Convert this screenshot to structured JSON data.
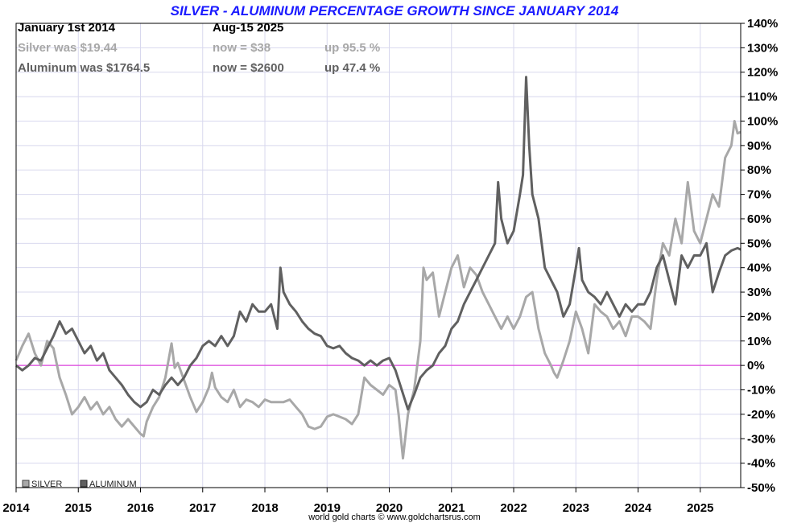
{
  "chart_data": {
    "type": "line",
    "title": "SILVER - ALUMINUM PERCENTAGE GROWTH SINCE JANUARY 2014",
    "info": {
      "start_label": "January 1st 2014",
      "end_label": "Aug-15  2025",
      "rows": [
        {
          "was": "Silver was $19.44",
          "now": "now = $38",
          "up": "up 95.5 %",
          "color": "#a8a8a8"
        },
        {
          "was": "Aluminum was $1764.5",
          "now": "now = $2600",
          "up": "up 47.4 %",
          "color": "#606060"
        }
      ],
      "start_color": "#000000"
    },
    "ylim": [
      -50,
      140
    ],
    "yticks": [
      "140%",
      "130%",
      "120%",
      "110%",
      "100%",
      "90%",
      "80%",
      "70%",
      "60%",
      "50%",
      "40%",
      "30%",
      "20%",
      "10%",
      "0%",
      "-10%",
      "-20%",
      "-30%",
      "-40%",
      "-50%"
    ],
    "xlim": [
      2014,
      2025.65
    ],
    "xticks": [
      "2014",
      "2015",
      "2016",
      "2017",
      "2018",
      "2019",
      "2020",
      "2021",
      "2022",
      "2023",
      "2024",
      "2025"
    ],
    "zero_line_color": "#dd44dd",
    "grid": true,
    "legend": {
      "position": "bottom-left",
      "items": [
        {
          "name": "SILVER",
          "color": "#a8a8a8"
        },
        {
          "name": "ALUMINUM",
          "color": "#606060"
        }
      ]
    },
    "credit": "world gold charts © www.goldchartsrus.com",
    "series": [
      {
        "name": "SILVER",
        "color": "#a8a8a8",
        "points": [
          [
            2014.0,
            2
          ],
          [
            2014.1,
            8
          ],
          [
            2014.2,
            13
          ],
          [
            2014.3,
            5
          ],
          [
            2014.4,
            0
          ],
          [
            2014.5,
            10
          ],
          [
            2014.6,
            7
          ],
          [
            2014.7,
            -5
          ],
          [
            2014.8,
            -12
          ],
          [
            2014.9,
            -20
          ],
          [
            2015.0,
            -17
          ],
          [
            2015.1,
            -13
          ],
          [
            2015.2,
            -18
          ],
          [
            2015.3,
            -15
          ],
          [
            2015.4,
            -20
          ],
          [
            2015.5,
            -17
          ],
          [
            2015.6,
            -22
          ],
          [
            2015.7,
            -25
          ],
          [
            2015.8,
            -22
          ],
          [
            2015.9,
            -25
          ],
          [
            2016.0,
            -28
          ],
          [
            2016.05,
            -29
          ],
          [
            2016.1,
            -23
          ],
          [
            2016.2,
            -17
          ],
          [
            2016.3,
            -13
          ],
          [
            2016.4,
            -5
          ],
          [
            2016.5,
            9
          ],
          [
            2016.55,
            -1
          ],
          [
            2016.6,
            1
          ],
          [
            2016.7,
            -6
          ],
          [
            2016.8,
            -13
          ],
          [
            2016.9,
            -19
          ],
          [
            2017.0,
            -15
          ],
          [
            2017.1,
            -9
          ],
          [
            2017.15,
            -3
          ],
          [
            2017.2,
            -9
          ],
          [
            2017.3,
            -13
          ],
          [
            2017.4,
            -15
          ],
          [
            2017.5,
            -10
          ],
          [
            2017.6,
            -17
          ],
          [
            2017.7,
            -14
          ],
          [
            2017.8,
            -15
          ],
          [
            2017.9,
            -17
          ],
          [
            2018.0,
            -14
          ],
          [
            2018.1,
            -15
          ],
          [
            2018.2,
            -15
          ],
          [
            2018.3,
            -15
          ],
          [
            2018.4,
            -14
          ],
          [
            2018.5,
            -17
          ],
          [
            2018.6,
            -20
          ],
          [
            2018.7,
            -25
          ],
          [
            2018.8,
            -26
          ],
          [
            2018.9,
            -25
          ],
          [
            2019.0,
            -21
          ],
          [
            2019.1,
            -20
          ],
          [
            2019.2,
            -21
          ],
          [
            2019.3,
            -22
          ],
          [
            2019.4,
            -24
          ],
          [
            2019.5,
            -20
          ],
          [
            2019.6,
            -5
          ],
          [
            2019.7,
            -8
          ],
          [
            2019.8,
            -10
          ],
          [
            2019.9,
            -12
          ],
          [
            2020.0,
            -8
          ],
          [
            2020.1,
            -10
          ],
          [
            2020.15,
            -20
          ],
          [
            2020.22,
            -38
          ],
          [
            2020.3,
            -20
          ],
          [
            2020.4,
            -10
          ],
          [
            2020.5,
            10
          ],
          [
            2020.55,
            40
          ],
          [
            2020.6,
            35
          ],
          [
            2020.7,
            38
          ],
          [
            2020.8,
            20
          ],
          [
            2020.9,
            30
          ],
          [
            2021.0,
            40
          ],
          [
            2021.1,
            45
          ],
          [
            2021.2,
            32
          ],
          [
            2021.3,
            40
          ],
          [
            2021.4,
            37
          ],
          [
            2021.5,
            30
          ],
          [
            2021.6,
            25
          ],
          [
            2021.7,
            20
          ],
          [
            2021.8,
            15
          ],
          [
            2021.9,
            20
          ],
          [
            2022.0,
            15
          ],
          [
            2022.1,
            20
          ],
          [
            2022.2,
            28
          ],
          [
            2022.3,
            30
          ],
          [
            2022.4,
            15
          ],
          [
            2022.5,
            5
          ],
          [
            2022.6,
            0
          ],
          [
            2022.65,
            -3
          ],
          [
            2022.7,
            -5
          ],
          [
            2022.8,
            2
          ],
          [
            2022.9,
            10
          ],
          [
            2023.0,
            22
          ],
          [
            2023.1,
            15
          ],
          [
            2023.2,
            5
          ],
          [
            2023.3,
            25
          ],
          [
            2023.4,
            22
          ],
          [
            2023.5,
            20
          ],
          [
            2023.6,
            15
          ],
          [
            2023.7,
            18
          ],
          [
            2023.8,
            12
          ],
          [
            2023.9,
            20
          ],
          [
            2024.0,
            20
          ],
          [
            2024.1,
            18
          ],
          [
            2024.2,
            15
          ],
          [
            2024.3,
            35
          ],
          [
            2024.4,
            50
          ],
          [
            2024.5,
            45
          ],
          [
            2024.6,
            60
          ],
          [
            2024.7,
            50
          ],
          [
            2024.8,
            75
          ],
          [
            2024.9,
            55
          ],
          [
            2025.0,
            50
          ],
          [
            2025.1,
            60
          ],
          [
            2025.2,
            70
          ],
          [
            2025.3,
            65
          ],
          [
            2025.4,
            85
          ],
          [
            2025.5,
            90
          ],
          [
            2025.55,
            100
          ],
          [
            2025.6,
            95
          ],
          [
            2025.65,
            95.5
          ]
        ]
      },
      {
        "name": "ALUMINUM",
        "color": "#606060",
        "points": [
          [
            2014.0,
            0
          ],
          [
            2014.1,
            -2
          ],
          [
            2014.2,
            0
          ],
          [
            2014.3,
            3
          ],
          [
            2014.4,
            2
          ],
          [
            2014.5,
            7
          ],
          [
            2014.6,
            12
          ],
          [
            2014.7,
            18
          ],
          [
            2014.8,
            13
          ],
          [
            2014.9,
            15
          ],
          [
            2015.0,
            10
          ],
          [
            2015.1,
            5
          ],
          [
            2015.2,
            8
          ],
          [
            2015.3,
            2
          ],
          [
            2015.4,
            5
          ],
          [
            2015.5,
            -2
          ],
          [
            2015.6,
            -5
          ],
          [
            2015.7,
            -8
          ],
          [
            2015.8,
            -12
          ],
          [
            2015.9,
            -15
          ],
          [
            2016.0,
            -17
          ],
          [
            2016.1,
            -15
          ],
          [
            2016.2,
            -10
          ],
          [
            2016.3,
            -12
          ],
          [
            2016.4,
            -8
          ],
          [
            2016.5,
            -5
          ],
          [
            2016.6,
            -8
          ],
          [
            2016.7,
            -5
          ],
          [
            2016.8,
            0
          ],
          [
            2016.9,
            3
          ],
          [
            2017.0,
            8
          ],
          [
            2017.1,
            10
          ],
          [
            2017.2,
            8
          ],
          [
            2017.3,
            12
          ],
          [
            2017.4,
            8
          ],
          [
            2017.5,
            12
          ],
          [
            2017.6,
            22
          ],
          [
            2017.7,
            18
          ],
          [
            2017.8,
            25
          ],
          [
            2017.9,
            22
          ],
          [
            2018.0,
            22
          ],
          [
            2018.1,
            25
          ],
          [
            2018.2,
            15
          ],
          [
            2018.25,
            40
          ],
          [
            2018.3,
            30
          ],
          [
            2018.4,
            25
          ],
          [
            2018.5,
            22
          ],
          [
            2018.6,
            18
          ],
          [
            2018.7,
            15
          ],
          [
            2018.8,
            13
          ],
          [
            2018.9,
            12
          ],
          [
            2019.0,
            8
          ],
          [
            2019.1,
            7
          ],
          [
            2019.2,
            8
          ],
          [
            2019.3,
            5
          ],
          [
            2019.4,
            3
          ],
          [
            2019.5,
            2
          ],
          [
            2019.6,
            0
          ],
          [
            2019.7,
            2
          ],
          [
            2019.8,
            0
          ],
          [
            2019.9,
            2
          ],
          [
            2020.0,
            3
          ],
          [
            2020.1,
            -2
          ],
          [
            2020.2,
            -10
          ],
          [
            2020.3,
            -18
          ],
          [
            2020.4,
            -12
          ],
          [
            2020.5,
            -5
          ],
          [
            2020.6,
            -2
          ],
          [
            2020.7,
            0
          ],
          [
            2020.8,
            5
          ],
          [
            2020.9,
            8
          ],
          [
            2021.0,
            15
          ],
          [
            2021.1,
            18
          ],
          [
            2021.2,
            25
          ],
          [
            2021.3,
            30
          ],
          [
            2021.4,
            35
          ],
          [
            2021.5,
            40
          ],
          [
            2021.6,
            45
          ],
          [
            2021.7,
            50
          ],
          [
            2021.75,
            75
          ],
          [
            2021.8,
            60
          ],
          [
            2021.9,
            50
          ],
          [
            2022.0,
            55
          ],
          [
            2022.1,
            70
          ],
          [
            2022.15,
            78
          ],
          [
            2022.2,
            118
          ],
          [
            2022.25,
            90
          ],
          [
            2022.3,
            70
          ],
          [
            2022.4,
            60
          ],
          [
            2022.5,
            40
          ],
          [
            2022.6,
            35
          ],
          [
            2022.7,
            30
          ],
          [
            2022.8,
            20
          ],
          [
            2022.9,
            25
          ],
          [
            2023.0,
            40
          ],
          [
            2023.05,
            48
          ],
          [
            2023.1,
            35
          ],
          [
            2023.2,
            30
          ],
          [
            2023.3,
            28
          ],
          [
            2023.4,
            25
          ],
          [
            2023.5,
            30
          ],
          [
            2023.6,
            25
          ],
          [
            2023.7,
            20
          ],
          [
            2023.8,
            25
          ],
          [
            2023.9,
            22
          ],
          [
            2024.0,
            25
          ],
          [
            2024.1,
            25
          ],
          [
            2024.2,
            30
          ],
          [
            2024.3,
            40
          ],
          [
            2024.4,
            45
          ],
          [
            2024.5,
            35
          ],
          [
            2024.6,
            25
          ],
          [
            2024.7,
            45
          ],
          [
            2024.8,
            40
          ],
          [
            2024.9,
            45
          ],
          [
            2025.0,
            45
          ],
          [
            2025.1,
            50
          ],
          [
            2025.2,
            30
          ],
          [
            2025.3,
            38
          ],
          [
            2025.4,
            45
          ],
          [
            2025.5,
            47
          ],
          [
            2025.6,
            48
          ],
          [
            2025.65,
            47.4
          ]
        ]
      }
    ]
  }
}
